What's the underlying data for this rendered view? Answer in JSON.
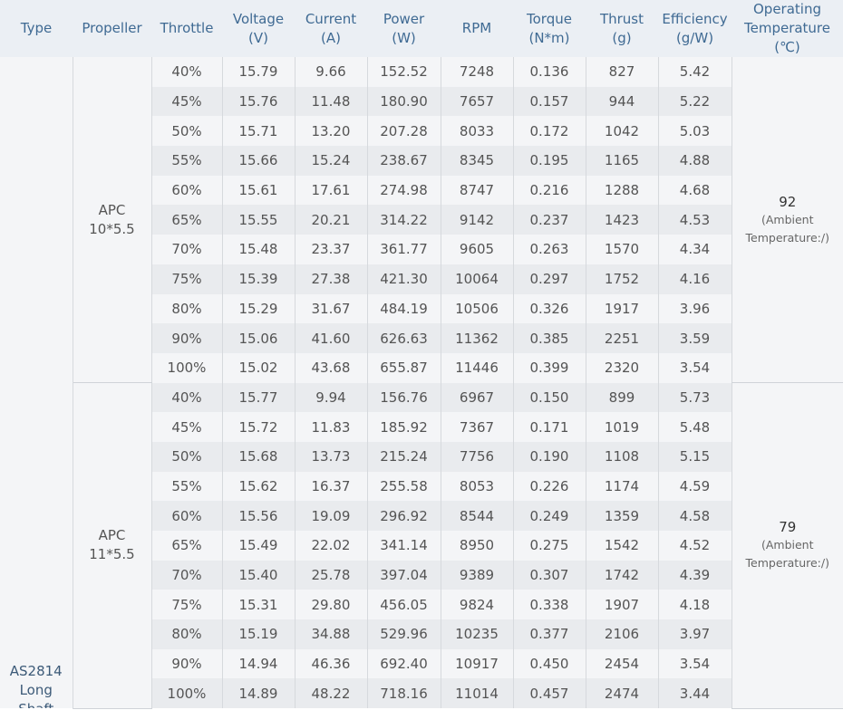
{
  "headers": [
    {
      "line1": "Type",
      "line2": "",
      "line3": ""
    },
    {
      "line1": "Propeller",
      "line2": "",
      "line3": ""
    },
    {
      "line1": "Throttle",
      "line2": "",
      "line3": ""
    },
    {
      "line1": "Voltage",
      "line2": "(V)",
      "line3": ""
    },
    {
      "line1": "Current",
      "line2": "(A)",
      "line3": ""
    },
    {
      "line1": "Power",
      "line2": "(W)",
      "line3": ""
    },
    {
      "line1": "RPM",
      "line2": "",
      "line3": ""
    },
    {
      "line1": "Torque",
      "line2": "(N*m)",
      "line3": ""
    },
    {
      "line1": "Thrust",
      "line2": "(g)",
      "line3": ""
    },
    {
      "line1": "Efficiency",
      "line2": "(g/W)",
      "line3": ""
    },
    {
      "line1": "Operating",
      "line2": "Temperature",
      "line3": "(℃)"
    }
  ],
  "type": {
    "line1": "AS2814",
    "line2": "Long Shaft"
  },
  "groups": [
    {
      "propeller": {
        "line1": "APC",
        "line2": "10*5.5"
      },
      "temperature": {
        "value": "92",
        "note1": "(Ambient",
        "note2": "Temperature:/)"
      },
      "rows": [
        [
          "40%",
          "15.79",
          "9.66",
          "152.52",
          "7248",
          "0.136",
          "827",
          "5.42"
        ],
        [
          "45%",
          "15.76",
          "11.48",
          "180.90",
          "7657",
          "0.157",
          "944",
          "5.22"
        ],
        [
          "50%",
          "15.71",
          "13.20",
          "207.28",
          "8033",
          "0.172",
          "1042",
          "5.03"
        ],
        [
          "55%",
          "15.66",
          "15.24",
          "238.67",
          "8345",
          "0.195",
          "1165",
          "4.88"
        ],
        [
          "60%",
          "15.61",
          "17.61",
          "274.98",
          "8747",
          "0.216",
          "1288",
          "4.68"
        ],
        [
          "65%",
          "15.55",
          "20.21",
          "314.22",
          "9142",
          "0.237",
          "1423",
          "4.53"
        ],
        [
          "70%",
          "15.48",
          "23.37",
          "361.77",
          "9605",
          "0.263",
          "1570",
          "4.34"
        ],
        [
          "75%",
          "15.39",
          "27.38",
          "421.30",
          "10064",
          "0.297",
          "1752",
          "4.16"
        ],
        [
          "80%",
          "15.29",
          "31.67",
          "484.19",
          "10506",
          "0.326",
          "1917",
          "3.96"
        ],
        [
          "90%",
          "15.06",
          "41.60",
          "626.63",
          "11362",
          "0.385",
          "2251",
          "3.59"
        ],
        [
          "100%",
          "15.02",
          "43.68",
          "655.87",
          "11446",
          "0.399",
          "2320",
          "3.54"
        ]
      ]
    },
    {
      "propeller": {
        "line1": "APC",
        "line2": "11*5.5"
      },
      "temperature": {
        "value": "79",
        "note1": "(Ambient",
        "note2": "Temperature:/)"
      },
      "rows": [
        [
          "40%",
          "15.77",
          "9.94",
          "156.76",
          "6967",
          "0.150",
          "899",
          "5.73"
        ],
        [
          "45%",
          "15.72",
          "11.83",
          "185.92",
          "7367",
          "0.171",
          "1019",
          "5.48"
        ],
        [
          "50%",
          "15.68",
          "13.73",
          "215.24",
          "7756",
          "0.190",
          "1108",
          "5.15"
        ],
        [
          "55%",
          "15.62",
          "16.37",
          "255.58",
          "8053",
          "0.226",
          "1174",
          "4.59"
        ],
        [
          "60%",
          "15.56",
          "19.09",
          "296.92",
          "8544",
          "0.249",
          "1359",
          "4.58"
        ],
        [
          "65%",
          "15.49",
          "22.02",
          "341.14",
          "8950",
          "0.275",
          "1542",
          "4.52"
        ],
        [
          "70%",
          "15.40",
          "25.78",
          "397.04",
          "9389",
          "0.307",
          "1742",
          "4.39"
        ],
        [
          "75%",
          "15.31",
          "29.80",
          "456.05",
          "9824",
          "0.338",
          "1907",
          "4.18"
        ],
        [
          "80%",
          "15.19",
          "34.88",
          "529.96",
          "10235",
          "0.377",
          "2106",
          "3.97"
        ],
        [
          "90%",
          "14.94",
          "46.36",
          "692.40",
          "10917",
          "0.450",
          "2454",
          "3.54"
        ],
        [
          "100%",
          "14.89",
          "48.22",
          "718.16",
          "11014",
          "0.457",
          "2474",
          "3.44"
        ]
      ]
    }
  ]
}
